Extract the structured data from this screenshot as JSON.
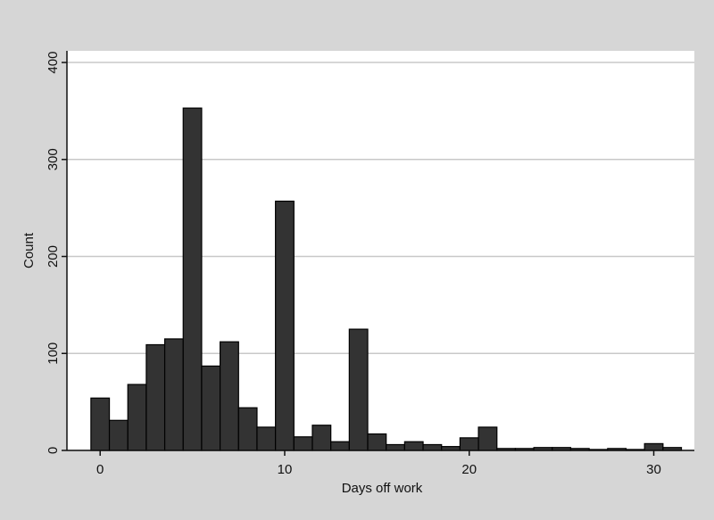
{
  "chart_data": {
    "type": "histogram",
    "x_label": "Days off work",
    "y_label": "Count",
    "bins": [
      -0.5,
      0.5,
      1.5,
      2.5,
      3.5,
      4.5,
      5.5,
      6.5,
      7.5,
      8.5,
      9.5,
      10.5,
      11.5,
      12.5,
      13.5,
      14.5,
      15.5,
      16.5,
      17.5,
      18.5,
      19.5,
      20.5,
      21.5,
      22.5,
      23.5,
      24.5,
      25.5,
      26.5,
      27.5,
      28.5,
      29.5,
      30.5,
      31.5
    ],
    "values": [
      54,
      31,
      68,
      109,
      115,
      353,
      87,
      112,
      44,
      24,
      257,
      14,
      26,
      9,
      125,
      17,
      6,
      9,
      6,
      4,
      13,
      24,
      2,
      2,
      3,
      3,
      2,
      1,
      2,
      1,
      7,
      3
    ],
    "color": "#333333",
    "xlim": [
      -1.8,
      32.2
    ],
    "ylim": [
      0,
      412
    ],
    "xticks": [
      0,
      10,
      20,
      30
    ],
    "yticks": [
      0,
      100,
      200,
      300,
      400
    ],
    "grid": true
  }
}
